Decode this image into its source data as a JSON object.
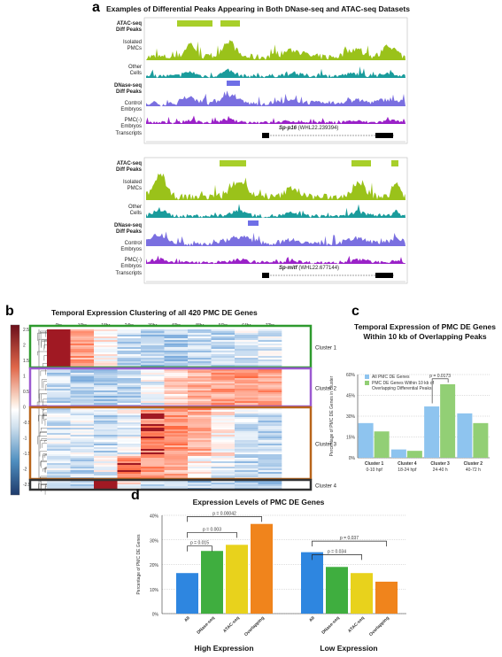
{
  "panel_a": {
    "letter": "a",
    "title": "Examples of Differential Peaks Appearing in Both DNase-seq and ATAC-seq Datasets",
    "track_labels": [
      [
        "ATAC-seq",
        "Diff Peaks"
      ],
      [
        "Isolated",
        "PMCs"
      ],
      [
        "Other",
        "Cells"
      ],
      [
        "DNase-seq",
        "Diff Peaks"
      ],
      [
        "Control",
        "Embryos"
      ],
      [
        "PMC(-)",
        "Embryos"
      ],
      [
        "Transcripts"
      ]
    ],
    "gene_top": {
      "name": "Sp-p16",
      "id": "(WHL22.239394)"
    },
    "gene_bottom": {
      "name": "Sp-mitf",
      "id": "(WHL22.677144)"
    },
    "colors": {
      "atac": "#9ac21a",
      "other": "#1a9c9c",
      "dnase": "#7a6fe0",
      "pmcneg": "#9a22c8",
      "peak_bar_green": "#a8cf2a",
      "peak_bar_blue": "#6f6fe6"
    }
  },
  "panel_b": {
    "letter": "b",
    "title": "Temporal Expression Clustering of all 420 PMC DE Genes",
    "timepoints": [
      "0hr",
      "10hr",
      "18hr",
      "24hr",
      "30hr",
      "40hr",
      "48hr",
      "56hr",
      "64hr",
      "72hr"
    ],
    "color_scale_ticks": [
      "2.5",
      "2",
      "1.5",
      "1",
      "0.5",
      "0",
      "-0.5",
      "-1",
      "-1.5",
      "-2",
      "-2.5"
    ],
    "clusters": [
      {
        "label": "Cluster 1",
        "color": "#2e9a2e"
      },
      {
        "label": "Cluster 2",
        "color": "#9b59d0"
      },
      {
        "label": "Cluster 3",
        "color": "#b8641a"
      },
      {
        "label": "Cluster 4",
        "color": "#333333"
      }
    ]
  },
  "panel_c": {
    "letter": "c",
    "title_lines": [
      "Temporal Expression of PMC DE Genes",
      "Within 10 kb of Overlapping Peaks"
    ],
    "ylabel": "Percentage of PMC DE Genes in Cluster",
    "chart_data": {
      "type": "bar",
      "categories": [
        "Cluster 1 0-10 hpf",
        "Cluster 4 18-24 hpf",
        "Cluster 3 24-40 h",
        "Cluster 2 40-72 h"
      ],
      "category_lines": [
        [
          "Cluster 1",
          "0-10 hpf"
        ],
        [
          "Cluster 4",
          "18-24 hpf"
        ],
        [
          "Cluster 3",
          "24-40 h"
        ],
        [
          "Cluster 2",
          "40-72 h"
        ]
      ],
      "series": [
        {
          "name": "All PMC DE Genes",
          "values": [
            25,
            6,
            37,
            32
          ],
          "color": "#8ec4ef"
        },
        {
          "name": "PMC DE Genes Within 10 kb of Overlapping Differential Peaks",
          "values": [
            19,
            5,
            53,
            25
          ],
          "color": "#92cf75"
        }
      ],
      "legend_lines": [
        [
          "All PMC DE Genes"
        ],
        [
          "PMC DE Genes Within 10 kb of",
          "Overlapping Differential Peaks"
        ]
      ],
      "yticks": [
        "0%",
        "15%",
        "30%",
        "45%",
        "60%"
      ],
      "ylim": [
        0,
        60
      ],
      "annotation": "p = 0.0173"
    }
  },
  "panel_d": {
    "letter": "d",
    "title": "Expression Levels of PMC DE Genes",
    "ylabel": "Percentage of PMC DE Genes",
    "chart_data": {
      "type": "bar",
      "groups": [
        {
          "name": "High Expression",
          "categories": [
            "All",
            "DNase-seq",
            "ATAC-seq",
            "Overlapping"
          ],
          "values": [
            16.5,
            25.5,
            28,
            36.5
          ]
        },
        {
          "name": "Low Expression",
          "categories": [
            "All",
            "DNase-seq",
            "ATAC-seq",
            "Overlapping"
          ],
          "values": [
            25,
            19,
            16.5,
            13
          ]
        }
      ],
      "bar_colors": [
        "#2e86e0",
        "#3fae3f",
        "#e8d21c",
        "#f0841c"
      ],
      "yticks": [
        "0%",
        "10%",
        "20%",
        "30%",
        "40%"
      ],
      "ylim": [
        0,
        40
      ],
      "annotations": [
        "p = 0.00042",
        "p = 0.003",
        "p = 0.015",
        "p = 0.037",
        "p = 0.034"
      ]
    }
  }
}
